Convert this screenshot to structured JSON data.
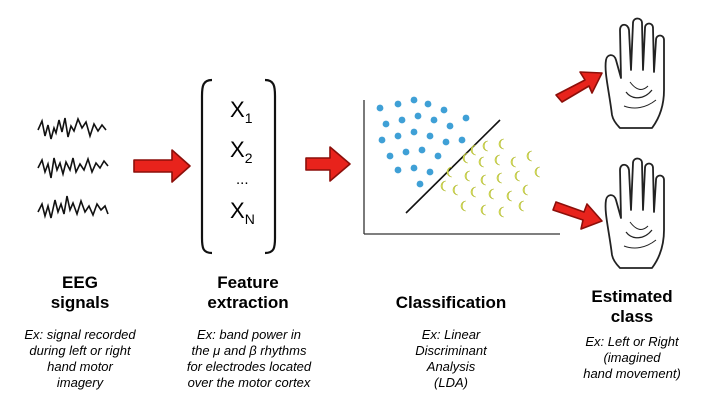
{
  "features": {
    "x1": {
      "main": "X",
      "sub": "1"
    },
    "x2": {
      "main": "X",
      "sub": "2"
    },
    "dots": "...",
    "xn": {
      "main": "X",
      "sub": "N"
    }
  },
  "stages": {
    "eeg": {
      "title_line1": "EEG",
      "title_line2": "signals",
      "desc": [
        "Ex: signal recorded",
        "during left or right",
        "hand motor",
        "imagery"
      ]
    },
    "feature": {
      "title_line1": "Feature",
      "title_line2": "extraction",
      "desc": [
        "Ex: band power in",
        "the μ and β rhythms",
        "for electrodes located",
        "over the motor cortex"
      ]
    },
    "classification": {
      "title": "Classification",
      "desc": [
        "Ex: Linear",
        "Discriminant",
        "Analysis",
        "(LDA)"
      ]
    },
    "estimated": {
      "title_line1": "Estimated",
      "title_line2": "class",
      "desc": [
        "Ex: Left or Right",
        "(imagined",
        "hand movement)"
      ]
    }
  },
  "colors": {
    "arrow_fill": "#e8231c",
    "arrow_stroke": "#8c0f0a",
    "dot_fill": "#3fa0d6",
    "moon_fill": "#e6ee6a",
    "moon_stroke": "#b4bc30"
  }
}
